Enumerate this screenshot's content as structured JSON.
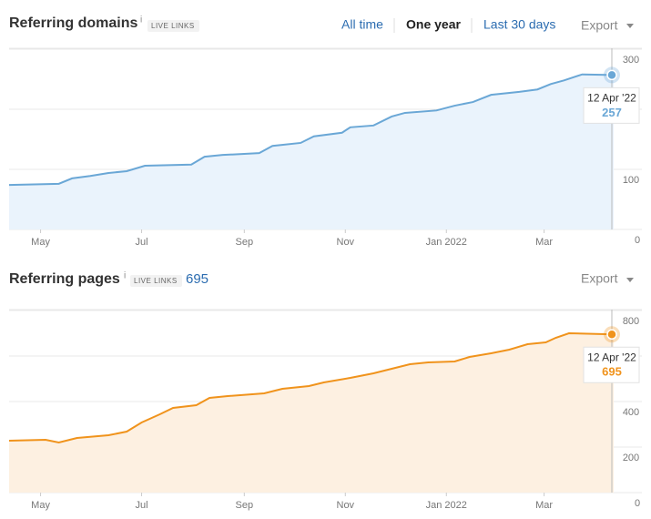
{
  "header": {
    "nav": [
      "All time",
      "One year",
      "Last 30 days"
    ],
    "export": "Export"
  },
  "chart_data": [
    {
      "type": "line",
      "title": "Referring domains",
      "info": "i",
      "badge": "LIVE LINKS",
      "export": "Export",
      "color": "#6aa7d6",
      "fill": "#eaf3fc",
      "x": [
        0,
        30,
        38,
        49,
        60,
        71,
        82,
        110,
        118,
        129,
        151,
        159,
        176,
        184,
        201,
        206,
        220,
        231,
        239,
        258,
        269,
        280,
        291,
        308,
        319,
        327,
        335,
        346,
        365
      ],
      "values": [
        74,
        76,
        85,
        89,
        94,
        97,
        106,
        108,
        121,
        124,
        127,
        139,
        144,
        155,
        161,
        170,
        173,
        188,
        194,
        198,
        206,
        212,
        224,
        229,
        233,
        242,
        248,
        258,
        257
      ],
      "xlim": [
        0,
        365
      ],
      "xticks": [
        {
          "value": 19,
          "label": "May"
        },
        {
          "value": 80,
          "label": "Jul"
        },
        {
          "value": 142,
          "label": "Sep"
        },
        {
          "value": 203,
          "label": "Nov"
        },
        {
          "value": 264,
          "label": "Jan 2022"
        },
        {
          "value": 323,
          "label": "Mar"
        }
      ],
      "ylim": [
        0,
        300
      ],
      "yticks": [
        0,
        100,
        200,
        300
      ],
      "grid": true,
      "tooltip_date": "12 Apr '22"
    },
    {
      "type": "line",
      "title": "Referring pages",
      "info": "i",
      "badge": "LIVE LINKS",
      "total": 695,
      "export": "Export",
      "color": "#f0931c",
      "fill": "#fdf0e1",
      "x": [
        0,
        22,
        30,
        41,
        60,
        71,
        80,
        91,
        99,
        113,
        121,
        132,
        154,
        165,
        181,
        190,
        206,
        220,
        231,
        242,
        253,
        269,
        278,
        291,
        302,
        313,
        324,
        330,
        338,
        365
      ],
      "values": [
        228,
        232,
        220,
        240,
        252,
        268,
        308,
        344,
        372,
        384,
        416,
        424,
        436,
        456,
        468,
        484,
        504,
        524,
        544,
        564,
        572,
        576,
        596,
        612,
        628,
        652,
        660,
        680,
        700,
        695
      ],
      "xlim": [
        0,
        365
      ],
      "xticks": [
        {
          "value": 19,
          "label": "May"
        },
        {
          "value": 80,
          "label": "Jul"
        },
        {
          "value": 142,
          "label": "Sep"
        },
        {
          "value": 203,
          "label": "Nov"
        },
        {
          "value": 264,
          "label": "Jan 2022"
        },
        {
          "value": 323,
          "label": "Mar"
        }
      ],
      "ylim": [
        0,
        800
      ],
      "yticks": [
        0,
        200,
        400,
        600,
        800
      ],
      "grid": true,
      "tooltip_date": "12 Apr '22"
    }
  ]
}
